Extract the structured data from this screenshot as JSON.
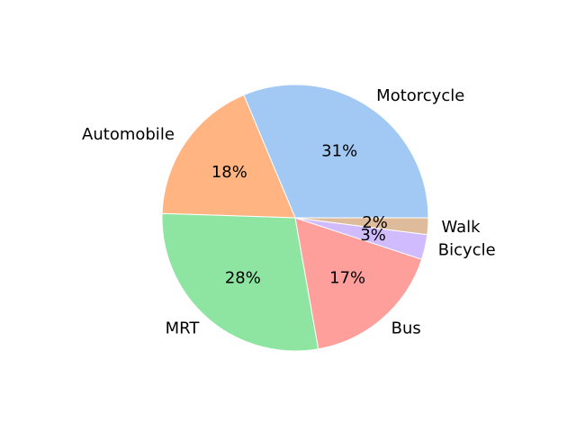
{
  "chart_data": {
    "type": "pie",
    "title": "",
    "slices": [
      {
        "label": "Motorcycle",
        "value": 31,
        "value_label": "31%",
        "color": "#a1c9f4"
      },
      {
        "label": "Automobile",
        "value": 18,
        "value_label": "18%",
        "color": "#ffb482"
      },
      {
        "label": "MRT",
        "value": 28,
        "value_label": "28%",
        "color": "#8de5a1"
      },
      {
        "label": "Bus",
        "value": 17,
        "value_label": "17%",
        "color": "#ff9f9b"
      },
      {
        "label": "Bicycle",
        "value": 3,
        "value_label": "3%",
        "color": "#d0bbff"
      },
      {
        "label": "Walk",
        "value": 2,
        "value_label": "2%",
        "color": "#debb9b"
      }
    ],
    "start_angle_deg": 0,
    "direction": "counterclockwise",
    "legend": "none"
  }
}
